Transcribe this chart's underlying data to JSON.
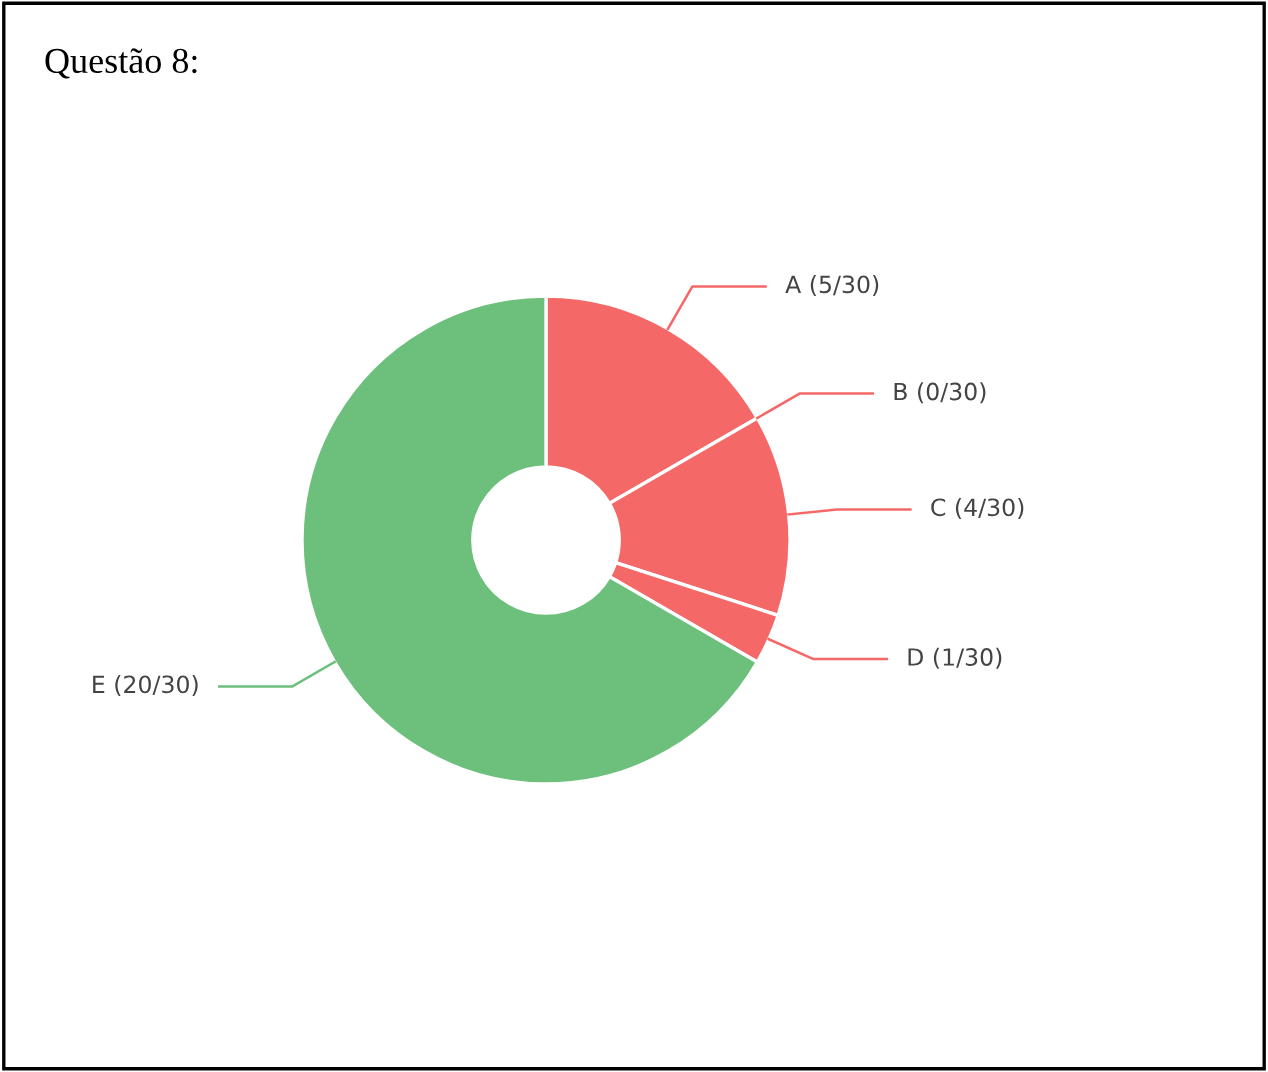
{
  "chart_data": {
    "type": "donut",
    "title": "Questão 8:",
    "categories": [
      "A (5/30)",
      "B (0/30)",
      "C (4/30)",
      "D (1/30)",
      "E (20/30)"
    ],
    "values": [
      5,
      0,
      4,
      1,
      20
    ],
    "colors": [
      "#f46868",
      "#f46868",
      "#f46868",
      "#f46868",
      "#6cc07c"
    ]
  }
}
